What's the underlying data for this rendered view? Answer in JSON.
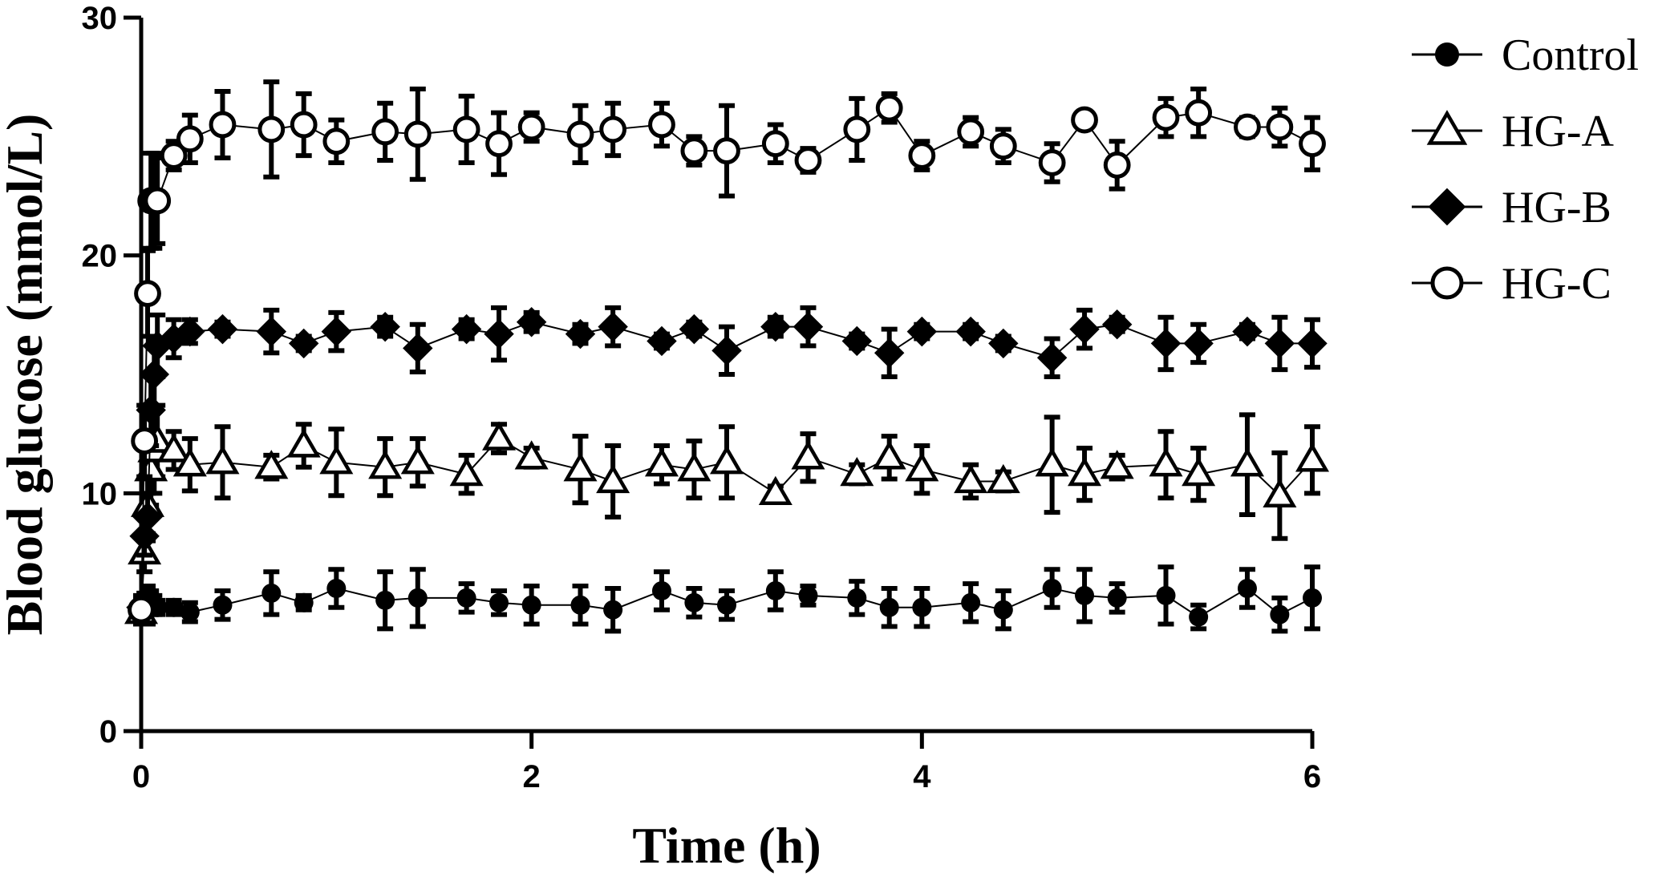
{
  "chart_data": {
    "type": "line",
    "xlabel": "Time (h)",
    "ylabel": "Blood glucose (mmol/L)",
    "xlim": [
      0,
      6
    ],
    "ylim": [
      0,
      30
    ],
    "xticks": [
      "0",
      "2",
      "4",
      "6"
    ],
    "yticks": [
      "0",
      "10",
      "20",
      "30"
    ],
    "grid": false,
    "legend_position": "top-right",
    "x": [
      0,
      0.017,
      0.033,
      0.05,
      0.067,
      0.083,
      0.167,
      0.25,
      0.417,
      0.667,
      0.833,
      1.0,
      1.25,
      1.417,
      1.667,
      1.833,
      2.0,
      2.25,
      2.417,
      2.667,
      2.833,
      3.0,
      3.25,
      3.417,
      3.667,
      3.833,
      4.0,
      4.25,
      4.417,
      4.667,
      4.833,
      5.0,
      5.25,
      5.417,
      5.667,
      5.833,
      6.0
    ],
    "series": [
      {
        "name": "Control",
        "marker": "filled-circle",
        "values": [
          4.9,
          5.2,
          5.3,
          5.4,
          5.3,
          5.2,
          5.2,
          5.0,
          5.3,
          5.8,
          5.4,
          6.0,
          5.5,
          5.6,
          5.6,
          5.4,
          5.3,
          5.3,
          5.1,
          5.9,
          5.4,
          5.3,
          5.9,
          5.7,
          5.6,
          5.2,
          5.2,
          5.4,
          5.1,
          6.0,
          5.7,
          5.6,
          5.7,
          4.8,
          6.0,
          4.9,
          5.6
        ],
        "errors": [
          0.4,
          0.6,
          0.8,
          0.5,
          0.4,
          0.3,
          0.3,
          0.4,
          0.6,
          0.9,
          0.3,
          0.8,
          1.2,
          1.2,
          0.6,
          0.5,
          0.8,
          0.8,
          0.9,
          0.8,
          0.6,
          0.6,
          0.8,
          0.4,
          0.7,
          0.8,
          0.8,
          0.8,
          0.8,
          0.8,
          1.1,
          0.6,
          1.2,
          0.5,
          0.8,
          0.7,
          1.3
        ]
      },
      {
        "name": "HG-A",
        "marker": "open-triangle",
        "values": [
          5.0,
          7.5,
          9.5,
          11.0,
          11.8,
          12.2,
          11.8,
          11.2,
          11.3,
          11.1,
          12.0,
          11.3,
          11.1,
          11.3,
          10.8,
          12.3,
          11.5,
          11.0,
          10.5,
          11.2,
          11.0,
          11.3,
          10.0,
          11.5,
          10.8,
          11.5,
          11.0,
          10.5,
          10.5,
          11.2,
          10.8,
          11.1,
          11.2,
          10.8,
          11.2,
          9.9,
          11.4
        ],
        "errors": [
          0.5,
          0.8,
          1.2,
          1.5,
          1.8,
          1.5,
          0.8,
          1.1,
          1.5,
          0.5,
          0.9,
          1.4,
          1.2,
          1.0,
          0.8,
          0.6,
          0.4,
          1.4,
          1.5,
          0.8,
          1.2,
          1.5,
          0.3,
          1.0,
          0.4,
          0.9,
          1.0,
          0.7,
          0.4,
          2.0,
          1.1,
          0.5,
          1.4,
          1.1,
          2.1,
          1.8,
          1.4
        ]
      },
      {
        "name": "HG-B",
        "marker": "filled-diamond",
        "values": [
          5.2,
          8.2,
          9.0,
          13.5,
          15.0,
          16.2,
          16.5,
          16.8,
          16.9,
          16.8,
          16.3,
          16.8,
          17.0,
          16.1,
          16.9,
          16.7,
          17.2,
          16.7,
          17.0,
          16.4,
          16.9,
          16.0,
          17.0,
          17.0,
          16.4,
          15.9,
          16.8,
          16.8,
          16.3,
          15.7,
          16.9,
          17.1,
          16.3,
          16.3,
          16.8,
          16.3,
          16.3
        ],
        "errors": [
          0.5,
          0.8,
          1.0,
          1.5,
          1.5,
          1.3,
          0.8,
          0.5,
          0.3,
          0.9,
          0.3,
          0.8,
          0.4,
          1.0,
          0.4,
          1.1,
          0.4,
          0.4,
          0.8,
          0.3,
          0.3,
          1.0,
          0.4,
          0.8,
          0.3,
          1.0,
          0.3,
          0.3,
          0.3,
          0.8,
          0.8,
          0.3,
          1.1,
          0.8,
          0.3,
          1.1,
          1.0
        ]
      },
      {
        "name": "HG-C",
        "marker": "open-circle",
        "values": [
          5.1,
          12.2,
          18.4,
          22.3,
          22.3,
          22.3,
          24.2,
          24.9,
          25.5,
          25.3,
          25.5,
          24.8,
          25.2,
          25.1,
          25.3,
          24.7,
          25.4,
          25.1,
          25.3,
          25.5,
          24.4,
          24.4,
          24.7,
          24.0,
          25.3,
          26.2,
          24.2,
          25.2,
          24.6,
          23.9,
          25.7,
          23.8,
          25.8,
          26.0,
          25.4,
          25.4,
          24.7
        ],
        "errors": [
          0.5,
          1.5,
          1.8,
          2.0,
          2.0,
          1.8,
          0.6,
          1.0,
          1.4,
          2.0,
          1.3,
          0.9,
          1.2,
          1.9,
          1.4,
          1.3,
          0.6,
          1.2,
          1.1,
          0.9,
          0.6,
          1.9,
          0.8,
          0.5,
          1.3,
          0.6,
          0.6,
          0.6,
          0.7,
          0.8,
          0.3,
          1.0,
          0.8,
          1.0,
          0.4,
          0.8,
          1.1
        ]
      }
    ]
  }
}
